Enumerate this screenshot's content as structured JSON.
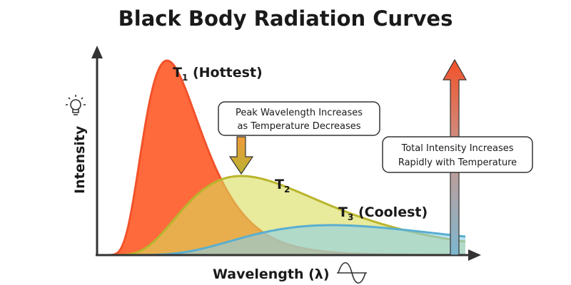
{
  "title": "Black Body Radiation Curves",
  "chart_data": {
    "type": "area",
    "title": "Black Body Radiation Curves",
    "xlabel": "Wavelength (λ)",
    "ylabel": "Intensity",
    "grid": false,
    "series": [
      {
        "name": "T1 (Hottest)",
        "label_main": "T",
        "label_sub": "1",
        "label_rest": " (Hottest)",
        "color": "#f2522a",
        "fill": "#ff6a3c"
      },
      {
        "name": "T2",
        "label_main": "T",
        "label_sub": "2",
        "label_rest": "",
        "color": "#b9b52c",
        "fill": "#d9dc5a"
      },
      {
        "name": "T3 (Coolest)",
        "label_main": "T",
        "label_sub": "3",
        "label_rest": " (Coolest)",
        "color": "#5aaed0",
        "fill": "#8ccfe8"
      }
    ],
    "annotations": {
      "peak": [
        "Peak Wavelength Increases",
        "as Temperature Decreases"
      ],
      "total": [
        "Total Intensity Increases",
        "Rapidly with Temperature"
      ]
    }
  },
  "icons": {
    "y_axis": "light-bulb-icon",
    "x_axis": "sine-wave-icon"
  }
}
